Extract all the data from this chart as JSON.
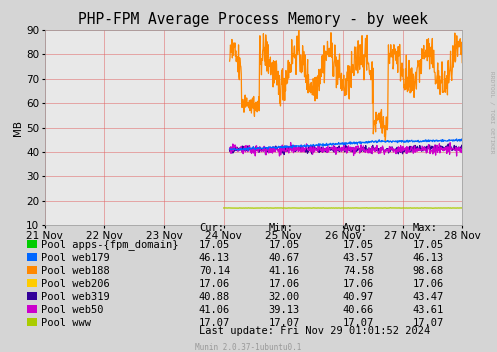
{
  "title": "PHP-FPM Average Process Memory - by week",
  "ylabel": "MB",
  "background_color": "#d5d5d5",
  "plot_bg_color": "#e8e8e8",
  "grid_color": "#e06060",
  "ylim": [
    10,
    90
  ],
  "yticks": [
    10,
    20,
    30,
    40,
    50,
    60,
    70,
    80,
    90
  ],
  "xlim": [
    0,
    7
  ],
  "xtick_labels": [
    "21 Nov",
    "22 Nov",
    "23 Nov",
    "24 Nov",
    "25 Nov",
    "26 Nov",
    "27 Nov",
    "28 Nov"
  ],
  "xtick_positions": [
    0,
    1,
    2,
    3,
    4,
    5,
    6,
    7
  ],
  "legend_entries": [
    {
      "label": "Pool apps-{fpm_domain}",
      "color": "#00cc00"
    },
    {
      "label": "Pool web179",
      "color": "#0066ff"
    },
    {
      "label": "Pool web188",
      "color": "#ff8800"
    },
    {
      "label": "Pool web206",
      "color": "#ffcc00"
    },
    {
      "label": "Pool web319",
      "color": "#330099"
    },
    {
      "label": "Pool web50",
      "color": "#cc00cc"
    },
    {
      "label": "Pool www",
      "color": "#aacc00"
    }
  ],
  "table_headers": [
    "Cur:",
    "Min:",
    "Avg:",
    "Max:"
  ],
  "table_data": [
    [
      "17.05",
      "17.05",
      "17.05",
      "17.05"
    ],
    [
      "46.13",
      "40.67",
      "43.57",
      "46.13"
    ],
    [
      "70.14",
      "41.16",
      "74.58",
      "98.68"
    ],
    [
      "17.06",
      "17.06",
      "17.06",
      "17.06"
    ],
    [
      "40.88",
      "32.00",
      "40.97",
      "43.47"
    ],
    [
      "41.06",
      "39.13",
      "40.66",
      "43.61"
    ],
    [
      "17.07",
      "17.07",
      "17.07",
      "17.07"
    ]
  ],
  "last_update": "Last update: Fri Nov 29 01:01:52 2024",
  "munin_version": "Munin 2.0.37-1ubuntu0.1",
  "rrdtool_label": "RRDTOOL / TOBI OETIKER",
  "title_fontsize": 10.5,
  "axis_fontsize": 7.5,
  "legend_fontsize": 7.5,
  "table_fontsize": 7.5
}
